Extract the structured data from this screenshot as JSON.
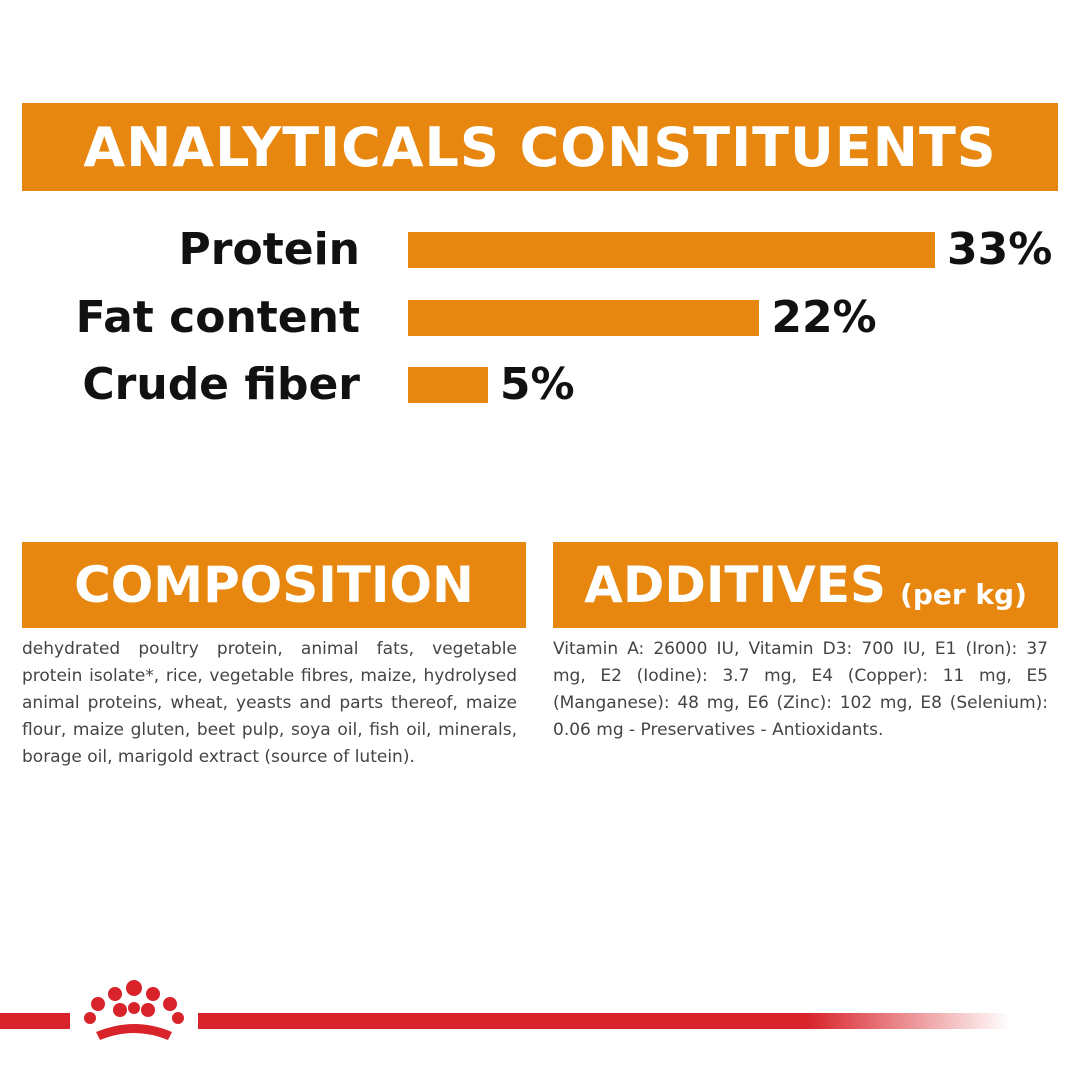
{
  "chart_data": {
    "type": "bar",
    "orientation": "horizontal",
    "title": "ANALYTICALS CONSTITUENTS",
    "categories": [
      "Protein",
      "Fat content",
      "Crude fiber"
    ],
    "values": [
      33,
      22,
      5
    ],
    "value_labels": [
      "33%",
      "22%",
      "5%"
    ],
    "color": "#e8870f"
  },
  "composition": {
    "title": "COMPOSITION",
    "text": "dehydrated poultry protein, animal fats, vegetable protein isolate*, rice, vegetable fibres, maize, hydrolysed animal proteins, wheat, yeasts and parts thereof, maize flour, maize gluten, beet pulp, soya oil, fish oil, minerals, borage oil, marigold extract (source of lutein)."
  },
  "additives": {
    "title": "ADDITIVES",
    "subtitle": "(per kg)",
    "text": "Vitamin A: 26000 IU, Vitamin D3: 700 IU, E1 (Iron): 37 mg, E2 (Iodine): 3.7 mg, E4 (Copper): 11 mg, E5 (Manganese): 48 mg, E6 (Zinc): 102 mg, E8 (Selenium): 0.06 mg - Preservatives - Antioxidants."
  }
}
